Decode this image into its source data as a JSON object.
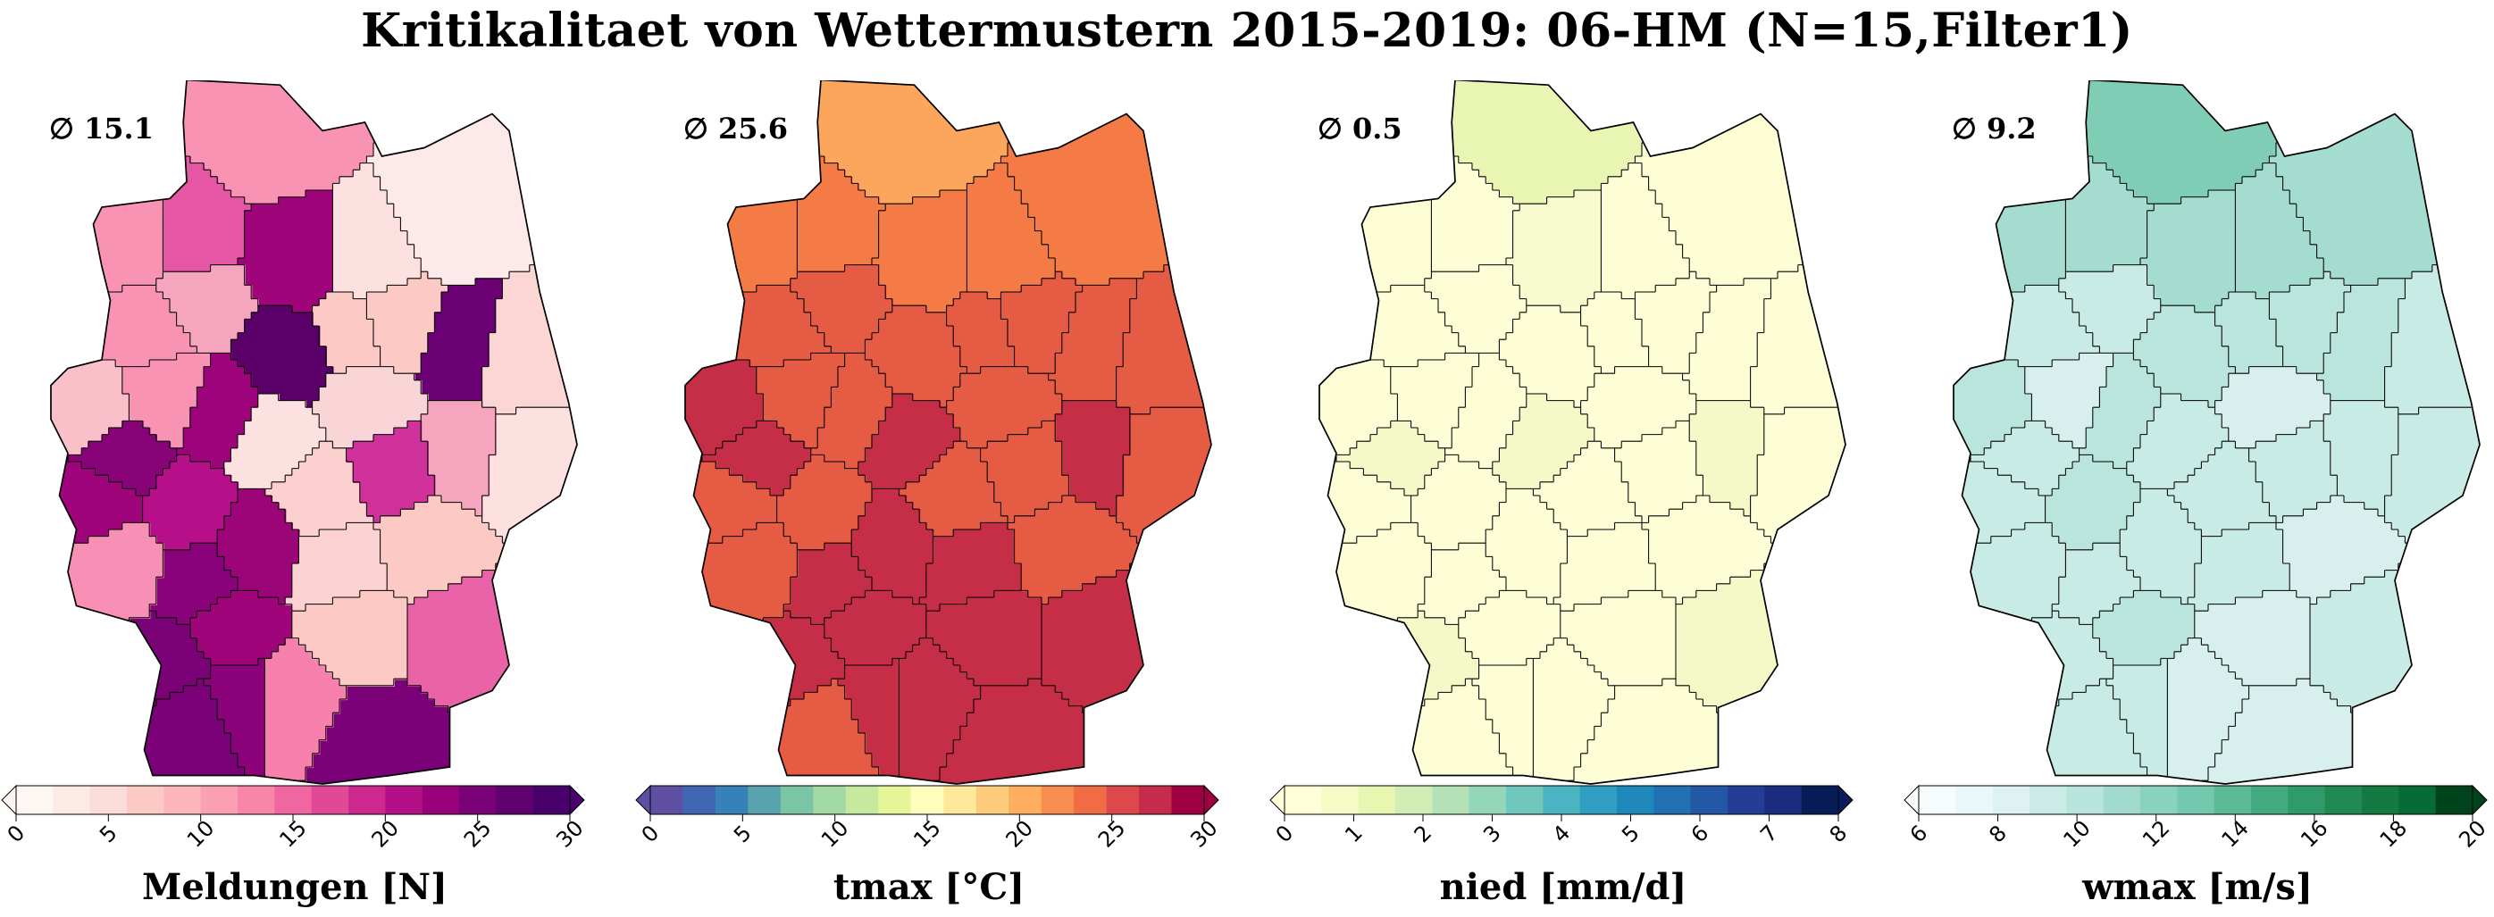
{
  "title": "Kritikalitaet von Wettermustern 2015-2019: 06-HM (N=15,Filter1)",
  "panels": [
    {
      "avg_symbol": "∅",
      "avg_value": "15.1",
      "colorbar_label": "Meldungen [N]",
      "ticks": [
        "0",
        "5",
        "10",
        "15",
        "20",
        "25",
        "30"
      ],
      "colors": [
        "#fff7f3",
        "#fde9e6",
        "#fcdcd8",
        "#fcc9c5",
        "#fbb5bb",
        "#fa9fb4",
        "#f885aa",
        "#f066a1",
        "#e14897",
        "#cc2a8e",
        "#b21086",
        "#980179",
        "#7a0177",
        "#5f016f",
        "#49006a"
      ],
      "region_colors": [
        "#f993b4",
        "#f993b4",
        "#e556a5",
        "#a0047a",
        "#fde0e0",
        "#fde9e9",
        "#f993b4",
        "#f5a5bd",
        "#fcc9c5",
        "#5b0068",
        "#fcc9c5",
        "#6a0073",
        "#fcd5d5",
        "#fde0e0",
        "#fac0c9",
        "#f993b4",
        "#9d037a",
        "#880278",
        "#fde0e0",
        "#fad5d8",
        "#a0047a",
        "#b70f89",
        "#fcd0cf",
        "#9c0577",
        "#f5a5bd",
        "#d1319a",
        "#8a0279",
        "#a0047a",
        "#7b0177",
        "#f88fb4",
        "#8b027a",
        "#fcd1d1",
        "#7a0177",
        "#f780ad",
        "#fcc9c5",
        "#fcc9c5",
        "#ea62a8",
        "#7a0177",
        "#f993b4"
      ]
    },
    {
      "avg_symbol": "∅",
      "avg_value": "25.6",
      "colorbar_label": "tmax [°C]",
      "ticks": [
        "0",
        "5",
        "10",
        "15",
        "20",
        "25",
        "30"
      ],
      "colors": [
        "#5e4fa2",
        "#4068b2",
        "#3581b8",
        "#58a3ad",
        "#7bc4a5",
        "#a2d9a4",
        "#c7e89f",
        "#e6f598",
        "#fefebd",
        "#fee89a",
        "#fdcc7a",
        "#fdae61",
        "#f88d52",
        "#ef6c44",
        "#dc494c",
        "#c52b4a",
        "#9e0142"
      ],
      "region_colors": [
        "#fca55d",
        "#f47b45",
        "#f47b45",
        "#f47b45",
        "#f47b45",
        "#f47b45",
        "#e55b44",
        "#e55b44",
        "#e55b44",
        "#e55b44",
        "#e55b44",
        "#e55b44",
        "#e55b44",
        "#e55b44",
        "#c62d47",
        "#e55b44",
        "#e55b44",
        "#c62d47",
        "#c62d47",
        "#e55b44",
        "#e55b44",
        "#e55b44",
        "#e55b44",
        "#c62d47",
        "#c62d47",
        "#e55b44",
        "#c62d47",
        "#c62d47",
        "#c62d47",
        "#e55b44",
        "#c62d47",
        "#c62d47",
        "#c62d47",
        "#c62d47",
        "#c62d47",
        "#e55b44",
        "#c62d47",
        "#e55b44",
        "#e55b44"
      ]
    },
    {
      "avg_symbol": "∅",
      "avg_value": "0.5",
      "colorbar_label": "nied [mm/d]",
      "ticks": [
        "0",
        "1",
        "2",
        "3",
        "4",
        "5",
        "6",
        "7",
        "8"
      ],
      "colors": [
        "#ffffd9",
        "#f4fbc5",
        "#e8f6b1",
        "#d2edb3",
        "#b5e1b6",
        "#95d5b9",
        "#6fc6bd",
        "#4ab4c2",
        "#2fa0c1",
        "#1e88bb",
        "#2070b2",
        "#2356a4",
        "#243d96",
        "#1a2c7e",
        "#081d58"
      ],
      "region_colors": [
        "#e9f5b3",
        "#fdfed6",
        "#fdfed6",
        "#f8fbcd",
        "#fdfed6",
        "#fdfed6",
        "#fdfed6",
        "#fdfed6",
        "#fdfed6",
        "#fdfed6",
        "#fdfed6",
        "#fdfed6",
        "#fdfed6",
        "#fdfed6",
        "#fdfed6",
        "#fdfed6",
        "#fdfed6",
        "#f4f9c7",
        "#f4f9c7",
        "#fdfed6",
        "#fdfed6",
        "#fdfed6",
        "#fdfed6",
        "#fdfed6",
        "#f4f9c7",
        "#fdfed6",
        "#fdfed6",
        "#fdfed6",
        "#f4f9c7",
        "#fdfed6",
        "#fdfed6",
        "#fdfed6",
        "#fdfed6",
        "#fdfed6",
        "#fdfed6",
        "#fdfed6",
        "#f4f9c7",
        "#fdfed6",
        "#f4f9c7"
      ]
    },
    {
      "avg_symbol": "∅",
      "avg_value": "9.2",
      "colorbar_label": "wmax [m/s]",
      "ticks": [
        "6",
        "8",
        "10",
        "12",
        "14",
        "16",
        "18",
        "20"
      ],
      "colors": [
        "#f7fcfd",
        "#eaf7f8",
        "#ddf2f1",
        "#cbece6",
        "#b8e5db",
        "#a2dbcd",
        "#8bd2be",
        "#73c8ad",
        "#5bba98",
        "#42ab82",
        "#2f9a6a",
        "#218a54",
        "#137b42",
        "#066b35",
        "#00441b"
      ],
      "region_colors": [
        "#7fcdb5",
        "#a4dcd0",
        "#a4dcd0",
        "#a4dcd0",
        "#a4dcd0",
        "#a4dcd0",
        "#c8ebe5",
        "#c8ebe5",
        "#b9e5dc",
        "#b9e5dc",
        "#b9e5dc",
        "#b9e5dc",
        "#c8ebe5",
        "#c8ebe5",
        "#b9e5dc",
        "#d7f0ee",
        "#b9e5dc",
        "#c8ebe5",
        "#c8ebe5",
        "#d7f0ee",
        "#c8ebe5",
        "#b9e5dc",
        "#c8ebe5",
        "#c8ebe5",
        "#c8ebe5",
        "#c8ebe5",
        "#c8ebe5",
        "#b9e5dc",
        "#c8ebe5",
        "#c8ebe5",
        "#c8ebe5",
        "#c8ebe5",
        "#d7f0ee",
        "#d7f0ee",
        "#d7f0ee",
        "#d7f0ee",
        "#c8ebe5",
        "#c8ebe5",
        "#d7f0ee"
      ]
    }
  ]
}
